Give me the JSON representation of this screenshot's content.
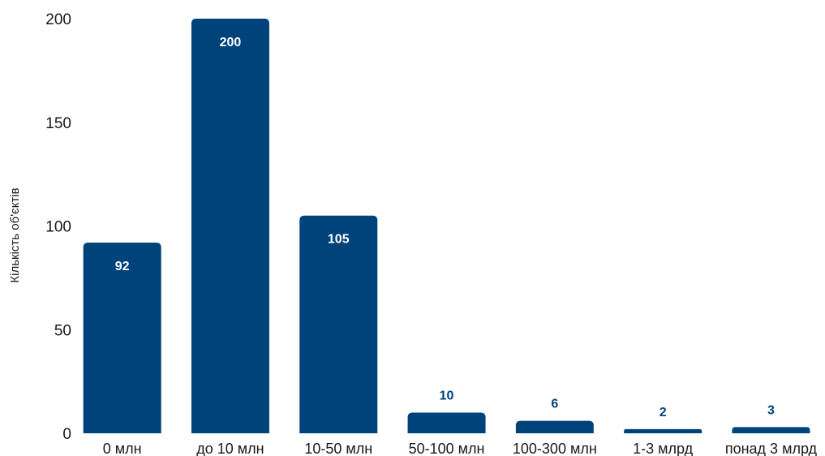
{
  "chart_data": {
    "type": "bar",
    "categories": [
      "0 млн",
      "до 10 млн",
      "10-50 млн",
      "50-100 млн",
      "100-300 млн",
      "1-3 млрд",
      "понад 3 млрд"
    ],
    "values": [
      92,
      200,
      105,
      10,
      6,
      2,
      3
    ],
    "value_labels": [
      "92",
      "200",
      "105",
      "10",
      "6",
      "2",
      "3"
    ],
    "ylabel": "Кількість об'єктів",
    "yticks": [
      0,
      50,
      100,
      150,
      200
    ],
    "ytick_labels": [
      "0",
      "50",
      "100",
      "150",
      "200"
    ],
    "ylim": [
      0,
      200
    ],
    "grid": false,
    "legend": "none",
    "bar_color": "#00427A"
  }
}
